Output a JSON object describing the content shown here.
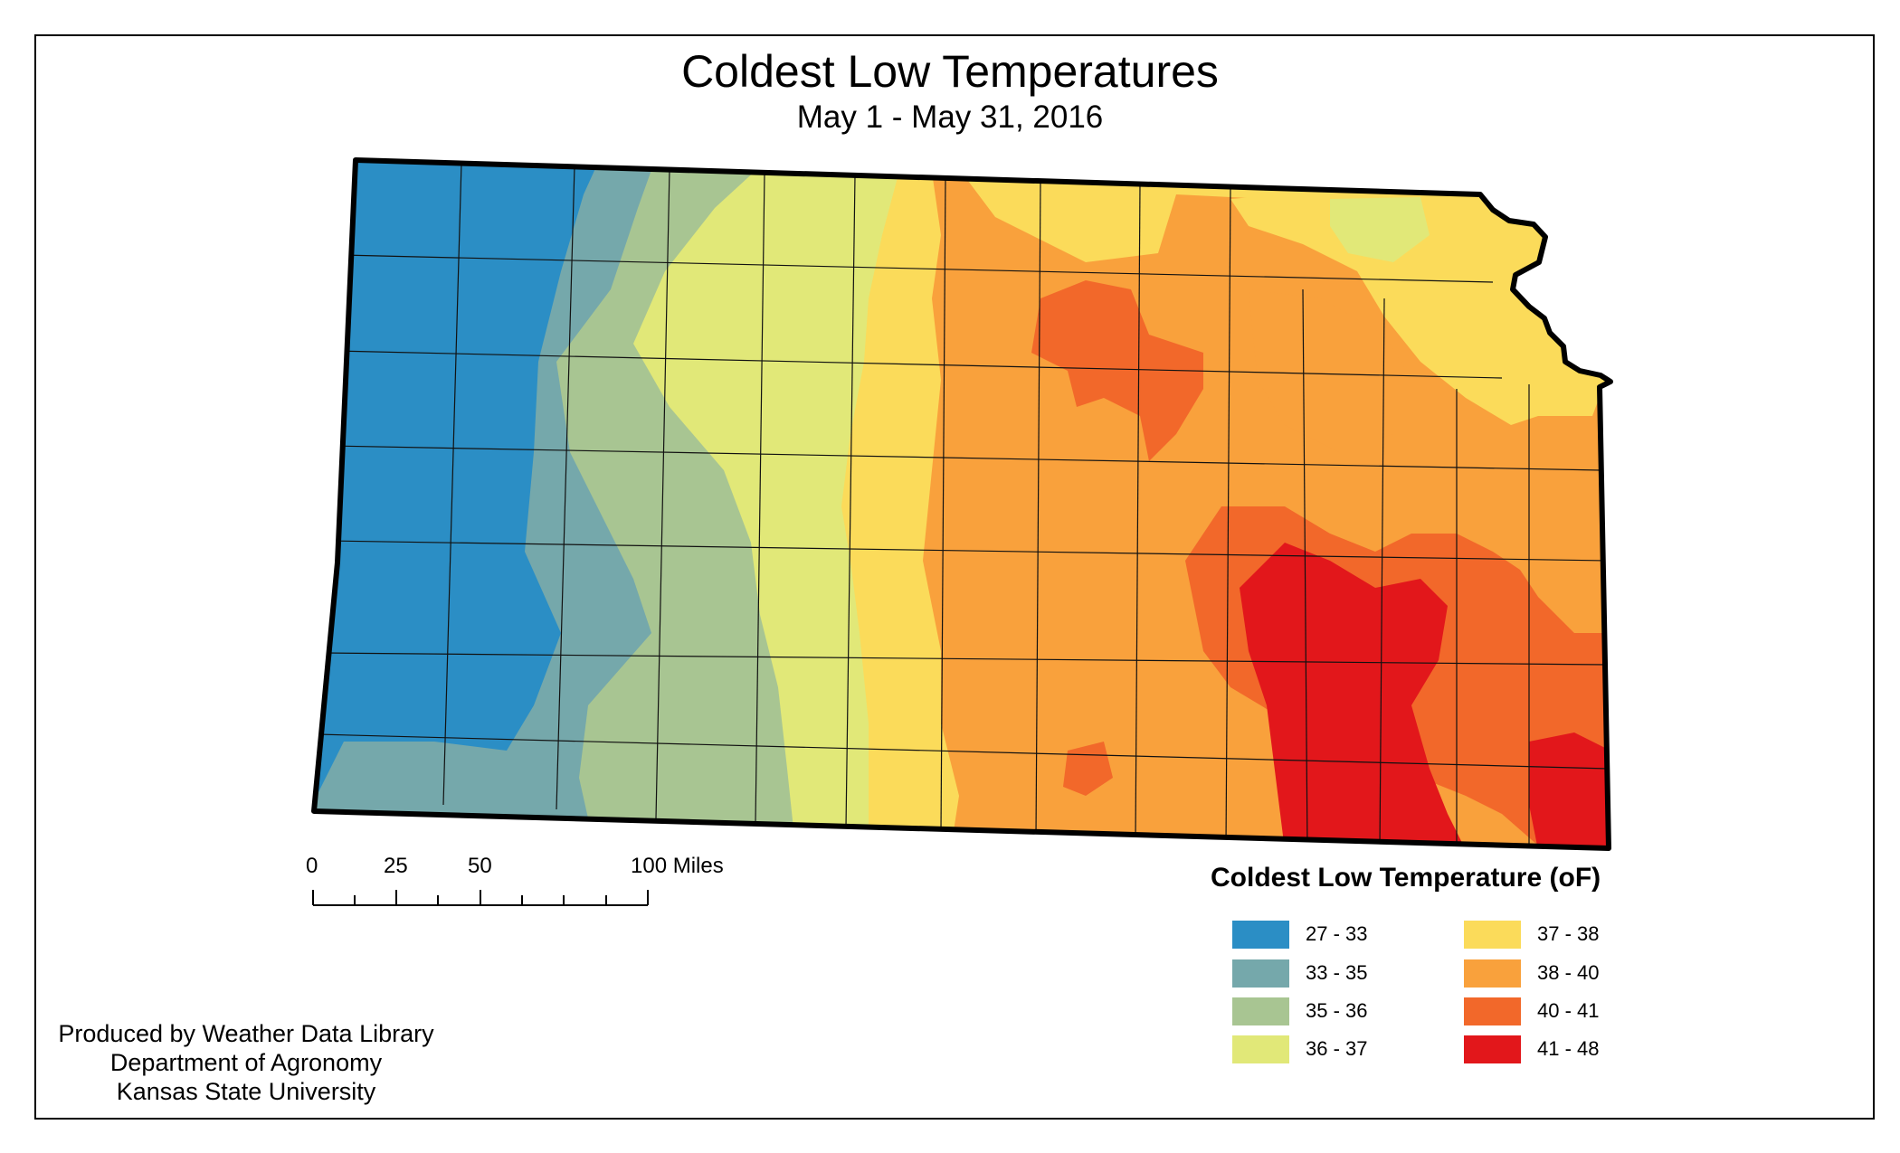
{
  "title": "Coldest Low Temperatures",
  "subtitle": "May 1 - May 31, 2016",
  "scale_bar": {
    "labels": [
      "0",
      "25",
      "50",
      "100 Miles"
    ],
    "miles": [
      0,
      25,
      50,
      100
    ]
  },
  "legend": {
    "title": "Coldest Low Temperature (oF)",
    "items": [
      {
        "label": "27 - 33",
        "color": "#2b8ec5"
      },
      {
        "label": "33 - 35",
        "color": "#75a8ab"
      },
      {
        "label": "35 - 36",
        "color": "#a8c592"
      },
      {
        "label": "36 - 37",
        "color": "#e1e878"
      },
      {
        "label": "37 - 38",
        "color": "#fbdb5a"
      },
      {
        "label": "38 - 40",
        "color": "#f9a13c"
      },
      {
        "label": "40 - 41",
        "color": "#f2682a"
      },
      {
        "label": "41 - 48",
        "color": "#e2171b"
      }
    ]
  },
  "credits": [
    "Produced by Weather Data Library",
    "Department of Agronomy",
    "Kansas State University"
  ]
}
